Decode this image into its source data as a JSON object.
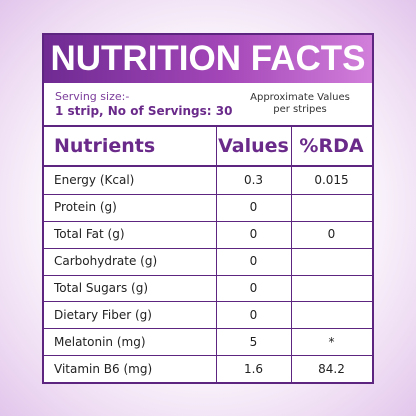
{
  "header": {
    "title": "NUTRITION FACTS"
  },
  "serving": {
    "label": "Serving size:-",
    "detail": "1 strip, No of Servings: 30",
    "note": [
      "Approximate Values",
      "per stripes"
    ]
  },
  "table": {
    "columns": [
      "Nutrients",
      "Values",
      "%RDA"
    ],
    "rows": [
      {
        "nutrient": "Energy (Kcal)",
        "value": "0.3",
        "rda": "0.015"
      },
      {
        "nutrient": "Protein (g)",
        "value": "0"
      },
      {
        "nutrient": "Total Fat (g)",
        "value": "0",
        "rda": "0"
      },
      {
        "nutrient": "Carbohydrate (g)",
        "value": "0"
      },
      {
        "nutrient": "Total Sugars (g)",
        "value": "0"
      },
      {
        "nutrient": "Dietary Fiber (g)",
        "value": "0"
      },
      {
        "nutrient": "Melatonin (mg)",
        "value": "5",
        "rda": "*"
      },
      {
        "nutrient": "Vitamin B6 (mg)",
        "value": "1.6",
        "rda": "84.2"
      }
    ]
  }
}
